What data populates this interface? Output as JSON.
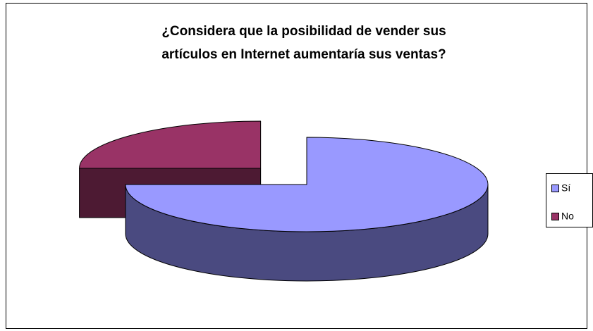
{
  "chart_data": {
    "type": "pie3d",
    "title": [
      "¿Considera que la posibilidad de vender sus",
      "artículos en Internet aumentaría sus ventas?"
    ],
    "categories": [
      "Sí",
      "No"
    ],
    "values": [
      75,
      25
    ],
    "colors": [
      "#9999ff",
      "#993366"
    ],
    "side_colors": [
      "#4a4a80",
      "#4d1a33"
    ],
    "exploded": [
      false,
      true
    ],
    "legend": "right"
  }
}
